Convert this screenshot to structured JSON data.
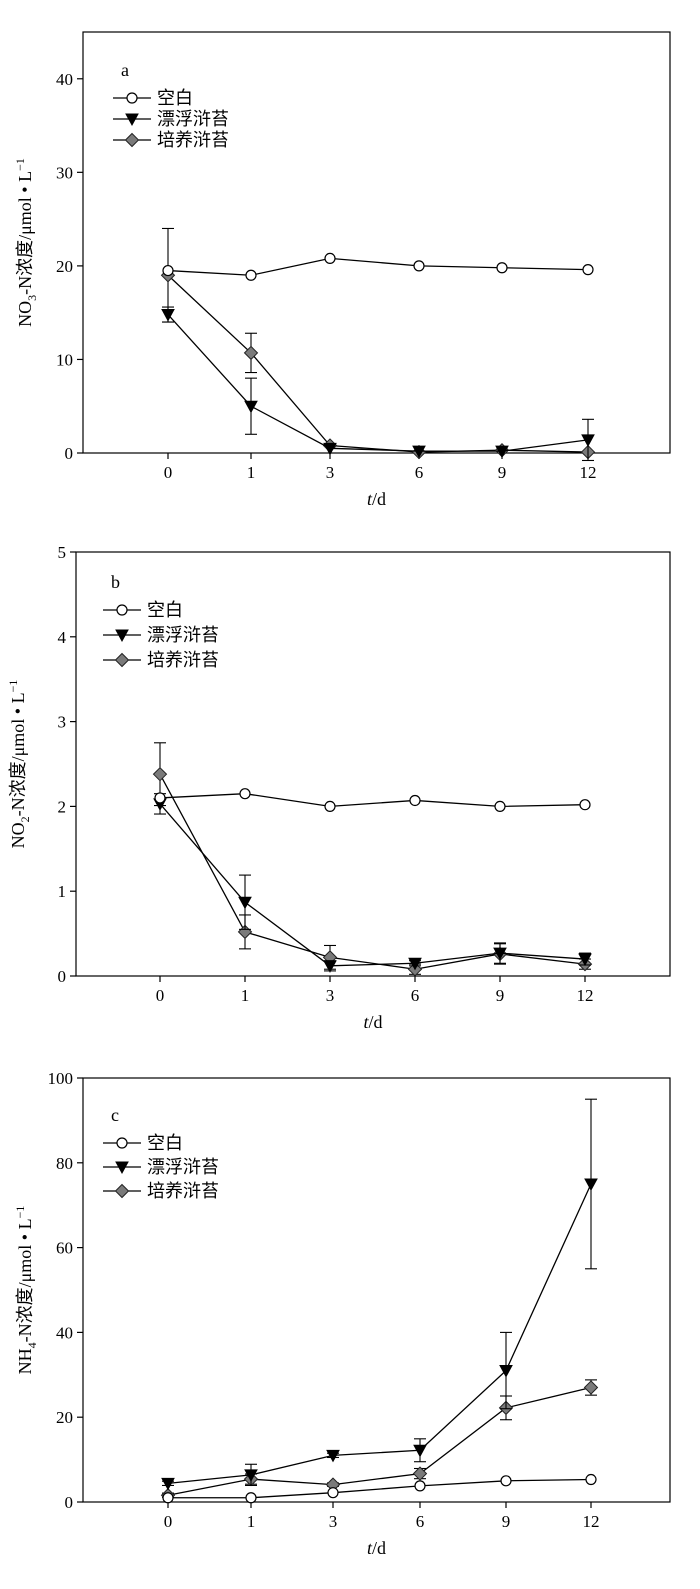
{
  "chart_data": [
    {
      "type": "line",
      "panel_label": "a",
      "xlabel_italic": "t",
      "xlabel_rest": "/d",
      "ylabel_prefix": "NO",
      "ylabel_sub": "3",
      "ylabel_rest": "-N浓度/μmol • L",
      "ylabel_sup": "−1",
      "x_categories": [
        "0",
        "1",
        "3",
        "6",
        "9",
        "12"
      ],
      "ylim": [
        0,
        45
      ],
      "yticks": [
        0,
        10,
        20,
        30,
        40
      ],
      "legend_position": "top-left",
      "series": [
        {
          "name": "空白",
          "marker": "circle",
          "values": [
            19.5,
            19.0,
            20.8,
            20.0,
            19.8,
            19.6
          ],
          "err": [
            null,
            null,
            null,
            null,
            null,
            null
          ]
        },
        {
          "name": "漂浮浒苔",
          "marker": "triangle-down",
          "values": [
            14.8,
            5.0,
            0.5,
            0.2,
            0.2,
            1.4
          ],
          "err": [
            0.8,
            3.0,
            null,
            null,
            null,
            2.2
          ]
        },
        {
          "name": "培养浒苔",
          "marker": "diamond",
          "values": [
            19.0,
            10.7,
            0.8,
            0.1,
            0.3,
            0.1
          ],
          "err": [
            5.0,
            2.1,
            null,
            null,
            null,
            null
          ]
        }
      ]
    },
    {
      "type": "line",
      "panel_label": "b",
      "xlabel_italic": "t",
      "xlabel_rest": "/d",
      "ylabel_prefix": "NO",
      "ylabel_sub": "2",
      "ylabel_rest": "-N浓度/μmol • L",
      "ylabel_sup": "−1",
      "x_categories": [
        "0",
        "1",
        "3",
        "6",
        "9",
        "12"
      ],
      "ylim": [
        0,
        5
      ],
      "yticks": [
        0,
        1,
        2,
        3,
        4,
        5
      ],
      "legend_position": "top-left",
      "series": [
        {
          "name": "空白",
          "marker": "circle",
          "values": [
            2.1,
            2.15,
            2.0,
            2.07,
            2.0,
            2.02
          ],
          "err": [
            null,
            null,
            null,
            null,
            null,
            null
          ]
        },
        {
          "name": "漂浮浒苔",
          "marker": "triangle-down",
          "values": [
            2.03,
            0.87,
            0.12,
            0.15,
            0.27,
            0.2
          ],
          "err": [
            0.12,
            0.32,
            0.06,
            0.03,
            0.12,
            0.07
          ]
        },
        {
          "name": "培养浒苔",
          "marker": "diamond",
          "values": [
            2.38,
            0.52,
            0.22,
            0.08,
            0.26,
            0.14
          ],
          "err": [
            0.37,
            0.2,
            0.14,
            0.06,
            0.12,
            0.06
          ]
        }
      ]
    },
    {
      "type": "line",
      "panel_label": "c",
      "xlabel_italic": "t",
      "xlabel_rest": "/d",
      "ylabel_prefix": "NH",
      "ylabel_sub": "4",
      "ylabel_rest": "-N浓度/μmol • L",
      "ylabel_sup": "−1",
      "x_categories": [
        "0",
        "1",
        "3",
        "6",
        "9",
        "12"
      ],
      "ylim": [
        0,
        100
      ],
      "yticks": [
        0,
        20,
        40,
        60,
        80,
        100
      ],
      "legend_position": "top-left",
      "series": [
        {
          "name": "空白",
          "marker": "circle",
          "values": [
            1.0,
            1.0,
            2.2,
            3.8,
            5.0,
            5.3
          ],
          "err": [
            null,
            null,
            null,
            null,
            null,
            null
          ]
        },
        {
          "name": "漂浮浒苔",
          "marker": "triangle-down",
          "values": [
            4.4,
            6.4,
            11.0,
            12.2,
            31.0,
            75.0
          ],
          "err": [
            0.5,
            2.5,
            0.5,
            2.7,
            9.0,
            20.0
          ]
        },
        {
          "name": "培养浒苔",
          "marker": "diamond",
          "values": [
            1.6,
            5.4,
            4.1,
            6.7,
            22.2,
            27.0
          ],
          "err": [
            0.5,
            1.2,
            0.4,
            1.2,
            2.8,
            1.8
          ]
        }
      ]
    }
  ]
}
